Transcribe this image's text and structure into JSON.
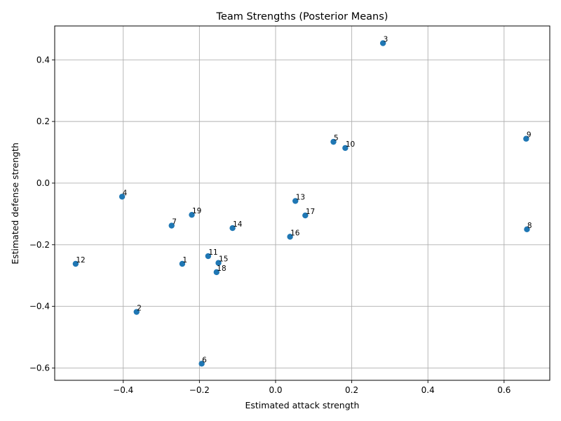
{
  "chart_data": {
    "type": "scatter",
    "title": "Team Strengths (Posterior Means)",
    "xlabel": "Estimated attack strength",
    "ylabel": "Estimated defense strength",
    "xlim": [
      -0.58,
      0.72
    ],
    "ylim": [
      -0.64,
      0.51
    ],
    "xticks": [
      -0.4,
      -0.2,
      0.0,
      0.2,
      0.4,
      0.6
    ],
    "xtick_labels": [
      "−0.4",
      "−0.2",
      "0.0",
      "0.2",
      "0.4",
      "0.6"
    ],
    "yticks": [
      -0.6,
      -0.4,
      -0.2,
      0.0,
      0.2,
      0.4
    ],
    "ytick_labels": [
      "−0.6",
      "−0.4",
      "−0.2",
      "0.0",
      "0.2",
      "0.4"
    ],
    "grid": true,
    "marker_color": "#1f77b4",
    "points": [
      {
        "label": "1",
        "x": -0.245,
        "y": -0.262
      },
      {
        "label": "2",
        "x": -0.365,
        "y": -0.418
      },
      {
        "label": "3",
        "x": 0.282,
        "y": 0.454
      },
      {
        "label": "4",
        "x": -0.403,
        "y": -0.044
      },
      {
        "label": "5",
        "x": 0.152,
        "y": 0.134
      },
      {
        "label": "6",
        "x": -0.194,
        "y": -0.586
      },
      {
        "label": "7",
        "x": -0.273,
        "y": -0.138
      },
      {
        "label": "8",
        "x": 0.66,
        "y": -0.15
      },
      {
        "label": "9",
        "x": 0.658,
        "y": 0.144
      },
      {
        "label": "10",
        "x": 0.183,
        "y": 0.114
      },
      {
        "label": "11",
        "x": -0.177,
        "y": -0.237
      },
      {
        "label": "12",
        "x": -0.525,
        "y": -0.262
      },
      {
        "label": "13",
        "x": 0.052,
        "y": -0.058
      },
      {
        "label": "14",
        "x": -0.113,
        "y": -0.146
      },
      {
        "label": "15",
        "x": -0.15,
        "y": -0.259
      },
      {
        "label": "16",
        "x": 0.038,
        "y": -0.174
      },
      {
        "label": "17",
        "x": 0.078,
        "y": -0.105
      },
      {
        "label": "18",
        "x": -0.155,
        "y": -0.289
      },
      {
        "label": "19",
        "x": -0.22,
        "y": -0.103
      }
    ]
  }
}
